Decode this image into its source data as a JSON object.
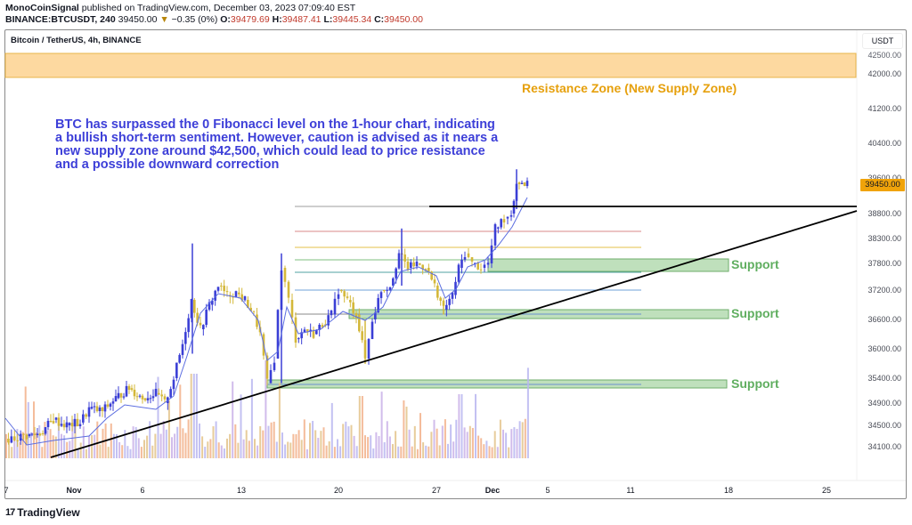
{
  "header": {
    "publisher": "MonoCoinSignal",
    "published_text": "published on TradingView.com, December 03, 2023 07:09:40 EST",
    "symbol": "BINANCE:BTCUSDT, 240",
    "last": "39450.00",
    "change_arrow": "▼",
    "change": "−0.35 (0%)",
    "open_label": "O:",
    "open": "39479.69",
    "high_label": "H:",
    "high": "39487.41",
    "low_label": "L:",
    "low": "39445.34",
    "close_label": "C:",
    "close": "39450.00"
  },
  "chart_title": "Bitcoin / TetherUS, 4h, BINANCE",
  "currency": "USDT",
  "current_price_tag": "39450.00",
  "annotation_text": "BTC has surpassed the 0 Fibonacci level on the 1-hour chart, indicating a bullish short-term sentiment. However, caution is advised as it nears a new supply zone around $42,500, which could lead to price resistance and a possible downward correction",
  "resistance_label": "Resistance Zone (New Supply Zone)",
  "support_labels": [
    "Support",
    "Support",
    "Support"
  ],
  "footer": {
    "brand": "TradingView",
    "brand_mark": "17"
  },
  "colors": {
    "up_candle": "#3b3fd6",
    "down_candle": "#d4b83a",
    "resistance_fill": "#fdd9a0",
    "resistance_border": "#e8b54a",
    "support_fill": "#bfe0bc",
    "support_border": "#6fae6b",
    "trendline": "#000000",
    "ma_line": "#5b6de0",
    "text_blue": "#3d3fd8",
    "text_orange": "#e6a00c",
    "text_green": "#5fae5f",
    "price_tag": "#f0a30a"
  },
  "chart_data": {
    "type": "candlestick",
    "title": "Bitcoin / TetherUS, 4h, BINANCE",
    "xlabel": "",
    "ylabel": "USDT",
    "y_ticks": [
      42500,
      42000,
      41200,
      40400,
      39600,
      38800,
      38300,
      37800,
      37200,
      36600,
      36000,
      35400,
      34900,
      34500,
      34100
    ],
    "x_ticks": [
      "7",
      "Nov",
      "6",
      "13",
      "20",
      "27",
      "Dec",
      "5",
      "11",
      "18",
      "25"
    ],
    "ylim": [
      34000,
      42600
    ],
    "grid": false,
    "last_price": 39450.0,
    "approx_path": [
      {
        "date": "Oct 28",
        "close": 34200
      },
      {
        "date": "Nov 1",
        "close": 34600
      },
      {
        "date": "Nov 5",
        "close": 35000
      },
      {
        "date": "Nov 9",
        "close": 36900
      },
      {
        "date": "Nov 10",
        "close": 37300
      },
      {
        "date": "Nov 12",
        "close": 37050
      },
      {
        "date": "Nov 14",
        "close": 35300
      },
      {
        "date": "Nov 15",
        "close": 37800
      },
      {
        "date": "Nov 17",
        "close": 36300
      },
      {
        "date": "Nov 21",
        "close": 35800
      },
      {
        "date": "Nov 22",
        "close": 36600
      },
      {
        "date": "Nov 24",
        "close": 37800
      },
      {
        "date": "Nov 27",
        "close": 36800
      },
      {
        "date": "Nov 29",
        "close": 37900
      },
      {
        "date": "Nov 30",
        "close": 37700
      },
      {
        "date": "Dec 1",
        "close": 38700
      },
      {
        "date": "Dec 2",
        "close": 39600
      },
      {
        "date": "Dec 3",
        "close": 39450
      }
    ],
    "annotations": {
      "resistance_zone": {
        "low": 42000,
        "high": 42500,
        "label": "Resistance Zone (New Supply Zone)"
      },
      "support_zones": [
        {
          "low": 37650,
          "high": 37850,
          "label": "Support"
        },
        {
          "low": 36650,
          "high": 36800,
          "label": "Support"
        },
        {
          "low": 35350,
          "high": 35450,
          "label": "Support"
        }
      ],
      "horizontal_resistance_line": 38900,
      "fib_levels": [
        38900,
        38550,
        38250,
        37900,
        37600,
        37200,
        36700
      ],
      "ascending_trendline": {
        "from": {
          "date": "Oct 30",
          "price": 34100
        },
        "to": {
          "date": "Dec 28",
          "price": 38800
        }
      }
    },
    "legend_position": "none"
  }
}
